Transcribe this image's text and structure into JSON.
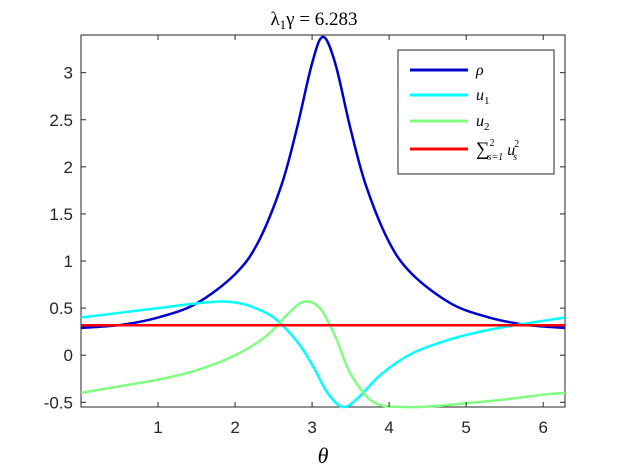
{
  "chart_data": {
    "type": "line",
    "title_math": {
      "lambda": "λ",
      "sub": "1",
      "gamma": "γ",
      "rest": " = 6.283"
    },
    "xlabel": "θ",
    "ylabel": "",
    "xlim": [
      0,
      6.2832
    ],
    "ylim": [
      -0.55,
      3.4
    ],
    "xticks": [
      1,
      2,
      3,
      4,
      5,
      6
    ],
    "xtick_labels": [
      "1",
      "2",
      "3",
      "4",
      "5",
      "6"
    ],
    "yticks": [
      -0.5,
      0,
      0.5,
      1,
      1.5,
      2,
      2.5,
      3
    ],
    "ytick_labels": [
      "-0.5",
      "0",
      "0.5",
      "1",
      "1.5",
      "2",
      "2.5",
      "3"
    ],
    "grid": false,
    "legend_position": "top-right",
    "series": [
      {
        "key": "rho",
        "legend": {
          "base": "ρ",
          "sub": "",
          "sup": ""
        },
        "color": "#0000cc",
        "x": [
          0.0,
          0.5,
          1.0,
          1.5,
          2.0,
          2.3,
          2.6,
          2.8,
          3.0,
          3.1416,
          3.3,
          3.5,
          3.7,
          4.0,
          4.3,
          4.8,
          5.3,
          5.8,
          6.2832
        ],
        "y": [
          0.29,
          0.32,
          0.4,
          0.55,
          0.86,
          1.2,
          1.8,
          2.4,
          3.1,
          3.38,
          3.1,
          2.4,
          1.8,
          1.2,
          0.86,
          0.55,
          0.4,
          0.32,
          0.29
        ]
      },
      {
        "key": "u1",
        "legend": {
          "base": "u",
          "sub": "1",
          "sup": ""
        },
        "color": "#00ffff",
        "x": [
          0.0,
          0.5,
          1.0,
          1.5,
          1.8,
          2.0,
          2.2,
          2.5,
          2.8,
          3.0,
          3.2,
          3.4,
          3.6,
          3.9,
          4.3,
          4.8,
          5.3,
          5.8,
          6.2832
        ],
        "y": [
          0.4,
          0.45,
          0.5,
          0.55,
          0.57,
          0.56,
          0.52,
          0.4,
          0.15,
          -0.1,
          -0.4,
          -0.55,
          -0.45,
          -0.2,
          0.02,
          0.17,
          0.27,
          0.34,
          0.4
        ]
      },
      {
        "key": "u2",
        "legend": {
          "base": "u",
          "sub": "2",
          "sup": ""
        },
        "color": "#80ff80",
        "x": [
          0.0,
          0.5,
          1.0,
          1.5,
          2.0,
          2.4,
          2.7,
          2.9,
          3.1,
          3.3,
          3.5,
          3.8,
          4.2,
          4.6,
          5.0,
          5.5,
          6.0,
          6.2832
        ],
        "y": [
          -0.4,
          -0.33,
          -0.26,
          -0.16,
          0.0,
          0.2,
          0.45,
          0.57,
          0.5,
          0.2,
          -0.2,
          -0.5,
          -0.55,
          -0.54,
          -0.51,
          -0.47,
          -0.42,
          -0.4
        ]
      },
      {
        "key": "usum",
        "legend": {
          "base": "",
          "sub": "s=1",
          "sup": "2",
          "term": "u",
          "term_sub": "s",
          "term_sup": "2"
        },
        "color": "#ff0000",
        "x": [
          0.0,
          6.2832
        ],
        "y": [
          0.318,
          0.318
        ]
      }
    ]
  }
}
